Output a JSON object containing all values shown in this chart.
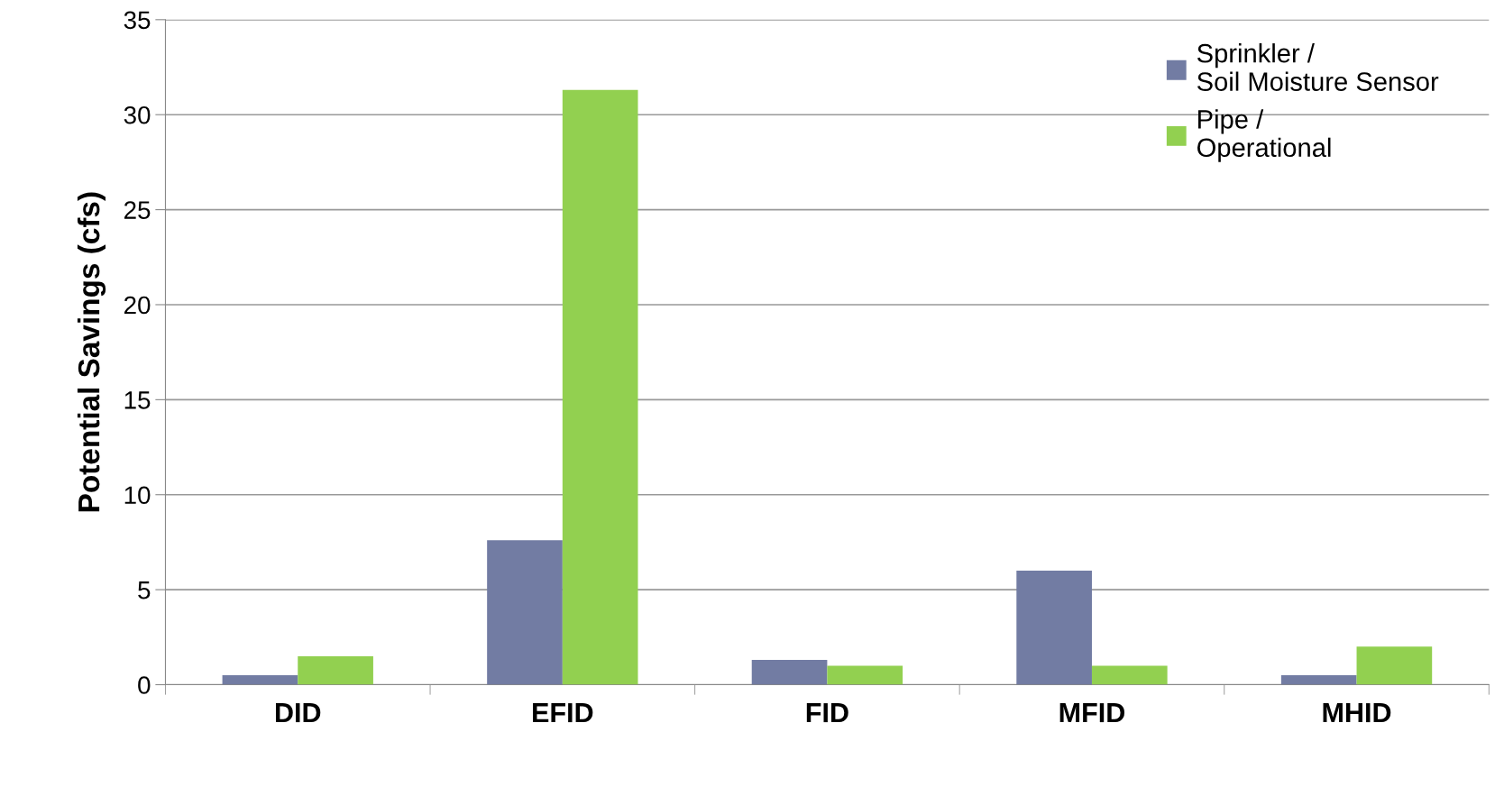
{
  "chart_data": {
    "type": "bar",
    "ylabel": "Potential Savings (cfs)",
    "categories": [
      "DID",
      "EFID",
      "FID",
      "MFID",
      "MHID"
    ],
    "series": [
      {
        "name": "Sprinkler /\nSoil Moisture Sensor",
        "color": "#727ca3",
        "values": [
          0.5,
          7.6,
          1.3,
          6.0,
          0.5
        ]
      },
      {
        "name": "Pipe /\nOperational",
        "color": "#92d050",
        "values": [
          1.5,
          31.3,
          1.0,
          1.0,
          2.0
        ]
      }
    ],
    "ylim": [
      0,
      35
    ],
    "yticks": [
      0,
      5,
      10,
      15,
      20,
      25,
      30,
      35
    ],
    "grid": "y",
    "legend": "top right"
  }
}
